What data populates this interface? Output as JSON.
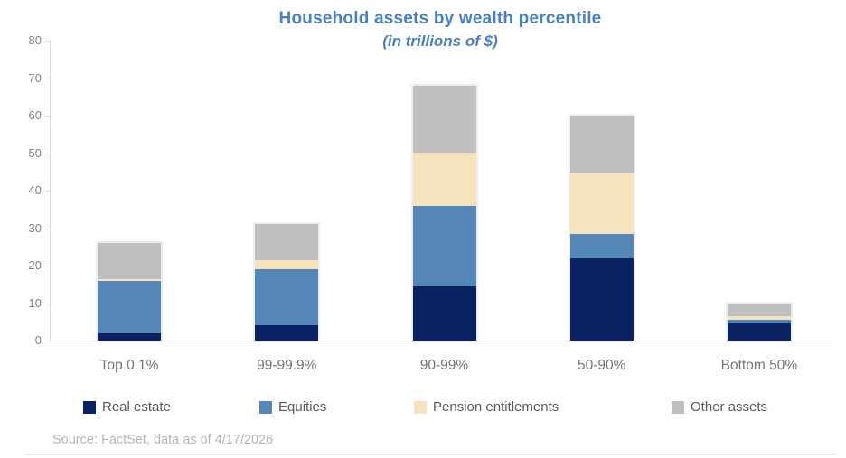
{
  "header": {
    "title": "Household assets by wealth percentile",
    "subtitle": "(in trillions of $)"
  },
  "source": "Source: FactSet, data as of 4/17/2026",
  "colors": {
    "title_blue": "#4a80c0",
    "axis_line": "#d9d9d9",
    "y_label_gray": "#7f7f7f",
    "x_label_gray": "#737373",
    "legend_text_gray": "#595959",
    "source_gray": "#b5b5b5"
  },
  "chart_data": {
    "type": "bar",
    "stacked": true,
    "title": "Household assets by wealth percentile",
    "subtitle": "(in trillions of $)",
    "xlabel": "",
    "ylabel": "",
    "ylim": [
      0,
      80
    ],
    "yticks": [
      0,
      10,
      20,
      30,
      40,
      50,
      60,
      70,
      80
    ],
    "grid": false,
    "legend_position": "bottom",
    "categories": [
      "Top 0.1%",
      "99-99.9%",
      "90-99%",
      "50-90%",
      "Bottom 50%"
    ],
    "series": [
      {
        "name": "Real estate",
        "color": "#0a2162",
        "values": [
          2,
          4,
          14.5,
          22,
          4.5
        ]
      },
      {
        "name": "Equities",
        "color": "#5586b8",
        "values": [
          14,
          15,
          21.5,
          6.5,
          1
        ]
      },
      {
        "name": "Pension entitlements",
        "color": "#f4e3bd",
        "values": [
          0.5,
          2.5,
          14,
          16,
          1
        ]
      },
      {
        "name": "Other assets",
        "color": "#bfbfbf",
        "values": [
          9.5,
          9.5,
          18,
          15.5,
          3.5
        ]
      }
    ],
    "totals": [
      26,
      31,
      68,
      60,
      10
    ]
  }
}
